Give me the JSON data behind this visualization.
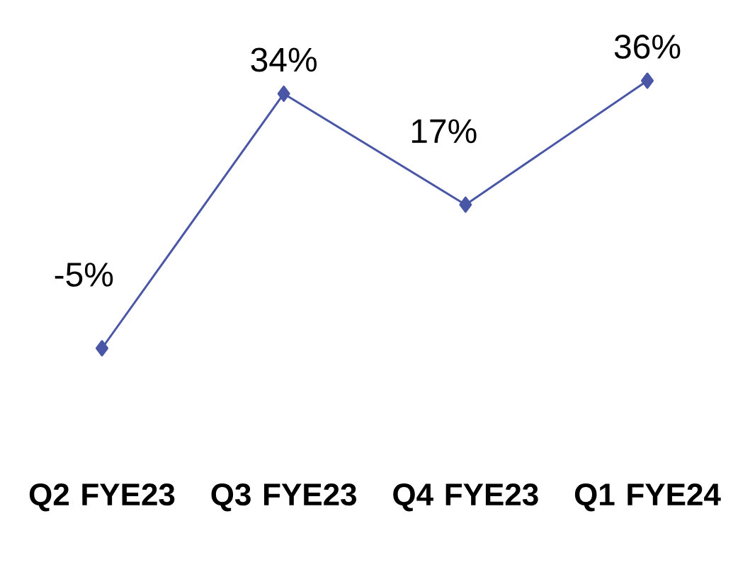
{
  "chart_data": {
    "type": "line",
    "categories": [
      "Q2 FYE23",
      "Q3 FYE23",
      "Q4 FYE23",
      "Q1 FYE24"
    ],
    "series": [
      {
        "color": "#4a56a6",
        "values": [
          -5,
          34,
          17,
          36
        ],
        "value_labels": [
          "-5%",
          "34%",
          "17%",
          "36%"
        ]
      }
    ],
    "marker": "diamond",
    "line_style": "solid"
  }
}
